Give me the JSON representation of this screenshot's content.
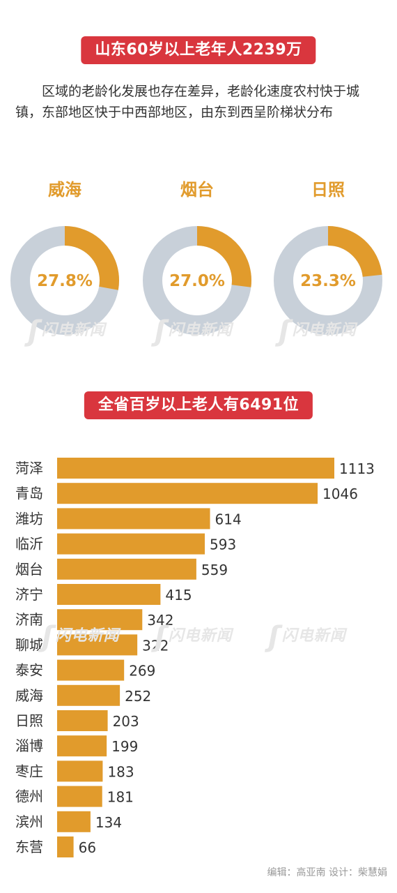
{
  "banner1": "山东60岁以上老年人2239万",
  "intro": "区域的老龄化发展也存在差异，老龄化速度农村快于城镇，东部地区快于中西部地区，由东到西呈阶梯状分布",
  "donuts": [
    {
      "city": "威海",
      "value": 27.8,
      "label": "27.8%"
    },
    {
      "city": "烟台",
      "value": 27.0,
      "label": "27.0%"
    },
    {
      "city": "日照",
      "value": 23.3,
      "label": "23.3%"
    }
  ],
  "banner2": "全省百岁以上老人有6491位",
  "watermark": "闪电新闻",
  "credit": "编辑：高亚南  设计：柴慧娟",
  "colors": {
    "accent": "#e19b2c",
    "banner": "#d9363e",
    "ring_rest": "#c8d0d9"
  },
  "chart_data": {
    "type": "bar",
    "orientation": "horizontal",
    "categories": [
      "菏泽",
      "青岛",
      "潍坊",
      "临沂",
      "烟台",
      "济宁",
      "济南",
      "聊城",
      "泰安",
      "威海",
      "日照",
      "淄博",
      "枣庄",
      "德州",
      "滨州",
      "东营"
    ],
    "values": [
      1113,
      1046,
      614,
      593,
      559,
      415,
      342,
      322,
      269,
      252,
      203,
      199,
      183,
      181,
      134,
      66
    ],
    "title": "全省百岁以上老人有6491位",
    "xlim": [
      0,
      1113
    ]
  }
}
